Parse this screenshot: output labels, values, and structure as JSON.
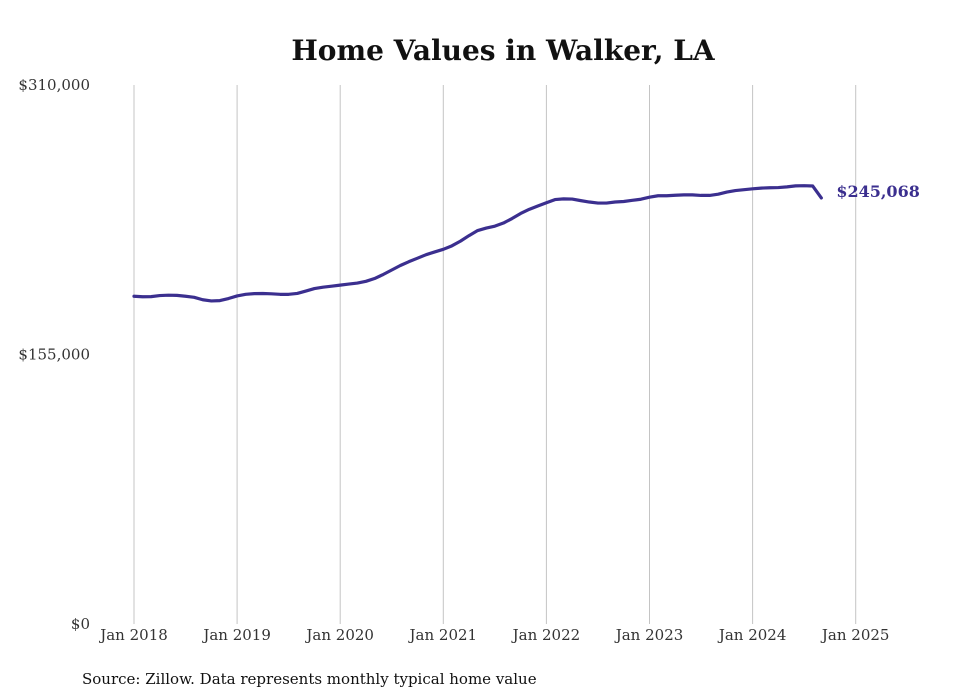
{
  "chart_data": {
    "type": "line",
    "title": "Home Values in Walker, LA",
    "xlabel": "",
    "ylabel": "",
    "source": "Source: Zillow. Data represents monthly typical home value",
    "x_start": "2018-01",
    "x_tick_labels": [
      "Jan 2018",
      "Jan 2019",
      "Jan 2020",
      "Jan 2021",
      "Jan 2022",
      "Jan 2023",
      "Jan 2024",
      "Jan 2025"
    ],
    "y_tick_labels": [
      "$310,000",
      "$155,000",
      "$0"
    ],
    "y_ticks": [
      310000,
      155000,
      0
    ],
    "ylim": [
      0,
      310000
    ],
    "grid": "vertical",
    "line_color": "#3b2f8f",
    "end_label": "$245,068",
    "series": [
      {
        "values": [
          188500,
          188200,
          188300,
          188900,
          189100,
          189000,
          188500,
          187900,
          186500,
          185800,
          186000,
          187200,
          188700,
          189600,
          190000,
          190100,
          189900,
          189600,
          189600,
          190100,
          191500,
          192900,
          193700,
          194300,
          194900,
          195500,
          196100,
          197100,
          198700,
          201000,
          203600,
          206200,
          208400,
          210400,
          212400,
          214000,
          215500,
          217500,
          220200,
          223400,
          226300,
          227700,
          228800,
          230600,
          233200,
          236100,
          238500,
          240400,
          242300,
          244100,
          244500,
          244400,
          243500,
          242700,
          242100,
          242100,
          242700,
          243000,
          243700,
          244300,
          245500,
          246300,
          246300,
          246600,
          246800,
          246800,
          246500,
          246500,
          247200,
          248400,
          249300,
          249800,
          250300,
          250700,
          250900,
          251000,
          251400,
          252000,
          252100,
          251900,
          245068
        ]
      }
    ]
  }
}
